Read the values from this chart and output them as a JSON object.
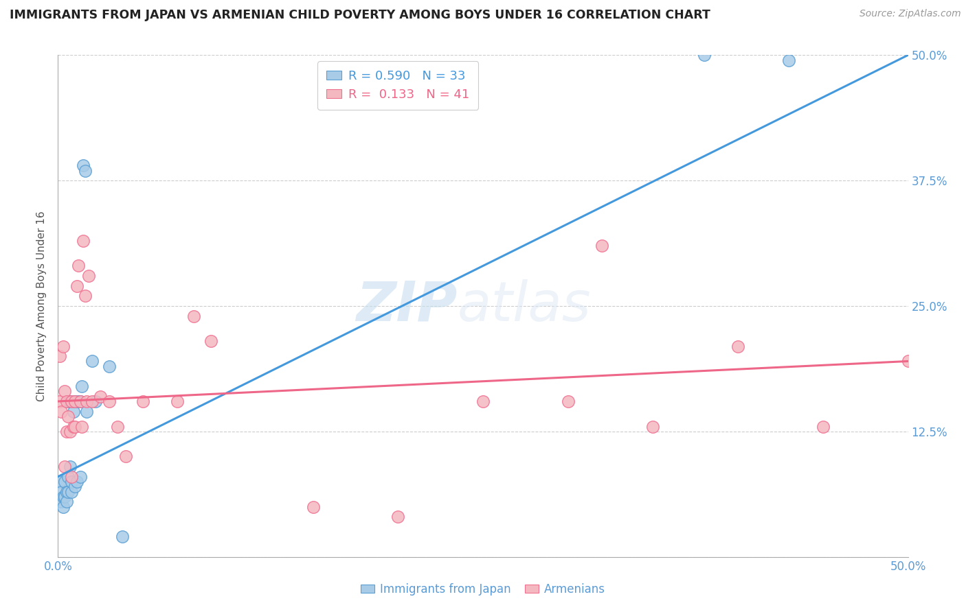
{
  "title": "IMMIGRANTS FROM JAPAN VS ARMENIAN CHILD POVERTY AMONG BOYS UNDER 16 CORRELATION CHART",
  "source": "Source: ZipAtlas.com",
  "ylabel": "Child Poverty Among Boys Under 16",
  "xlim": [
    0.0,
    0.5
  ],
  "ylim": [
    0.0,
    0.5
  ],
  "xticks": [
    0.0,
    0.1,
    0.2,
    0.3,
    0.4,
    0.5
  ],
  "yticks": [
    0.0,
    0.125,
    0.25,
    0.375,
    0.5
  ],
  "japan_R": "0.590",
  "japan_N": "33",
  "armenian_R": "0.133",
  "armenian_N": "41",
  "japan_color": "#a8cce8",
  "armenian_color": "#f4b8c1",
  "japan_edge_color": "#5a9fd4",
  "armenian_edge_color": "#f07090",
  "japan_line_color": "#4499dd",
  "armenian_line_color": "#ee6688",
  "legend_label_japan": "Immigrants from Japan",
  "legend_label_armenian": "Armenians",
  "watermark_zip": "ZIP",
  "watermark_atlas": "atlas",
  "tick_color": "#5b9bd5",
  "japan_scatter_x": [
    0.001,
    0.002,
    0.002,
    0.003,
    0.003,
    0.004,
    0.004,
    0.005,
    0.005,
    0.006,
    0.006,
    0.006,
    0.007,
    0.007,
    0.008,
    0.008,
    0.009,
    0.01,
    0.01,
    0.011,
    0.012,
    0.013,
    0.013,
    0.014,
    0.015,
    0.016,
    0.017,
    0.02,
    0.022,
    0.03,
    0.038,
    0.38,
    0.43
  ],
  "japan_scatter_y": [
    0.075,
    0.065,
    0.055,
    0.06,
    0.05,
    0.075,
    0.06,
    0.065,
    0.055,
    0.08,
    0.065,
    0.155,
    0.09,
    0.155,
    0.065,
    0.075,
    0.145,
    0.07,
    0.155,
    0.075,
    0.155,
    0.08,
    0.155,
    0.17,
    0.39,
    0.385,
    0.145,
    0.195,
    0.155,
    0.19,
    0.02,
    0.5,
    0.495
  ],
  "armenian_scatter_x": [
    0.001,
    0.001,
    0.002,
    0.003,
    0.004,
    0.004,
    0.005,
    0.005,
    0.006,
    0.007,
    0.008,
    0.008,
    0.009,
    0.01,
    0.01,
    0.011,
    0.012,
    0.013,
    0.014,
    0.015,
    0.016,
    0.017,
    0.018,
    0.02,
    0.025,
    0.03,
    0.035,
    0.04,
    0.05,
    0.07,
    0.08,
    0.09,
    0.15,
    0.2,
    0.25,
    0.3,
    0.35,
    0.4,
    0.45,
    0.5,
    0.32
  ],
  "armenian_scatter_y": [
    0.155,
    0.2,
    0.145,
    0.21,
    0.165,
    0.09,
    0.155,
    0.125,
    0.14,
    0.125,
    0.155,
    0.08,
    0.13,
    0.155,
    0.13,
    0.27,
    0.29,
    0.155,
    0.13,
    0.315,
    0.26,
    0.155,
    0.28,
    0.155,
    0.16,
    0.155,
    0.13,
    0.1,
    0.155,
    0.155,
    0.24,
    0.215,
    0.05,
    0.04,
    0.155,
    0.155,
    0.13,
    0.21,
    0.13,
    0.195,
    0.31
  ]
}
